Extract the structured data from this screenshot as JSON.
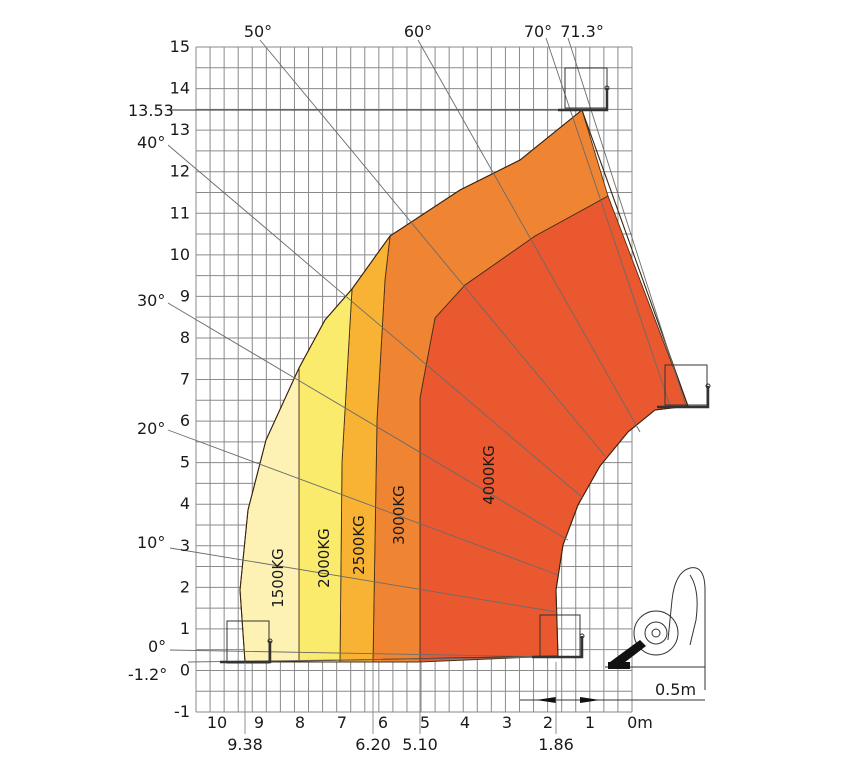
{
  "chart_data": {
    "type": "load-chart",
    "x_ticks": [
      "10",
      "9",
      "8",
      "7",
      "6",
      "5",
      "4",
      "3",
      "2",
      "1",
      "0m"
    ],
    "x_sub_labels": [
      "9.38",
      "6.20",
      "5.10",
      "1.86"
    ],
    "y_ticks": [
      "15",
      "14",
      "13",
      "12",
      "11",
      "10",
      "9",
      "8",
      "7",
      "6",
      "5",
      "4",
      "3",
      "2",
      "1",
      "0",
      "-1"
    ],
    "max_height_label": "13.53",
    "angles": [
      {
        "label": "0°",
        "deg": 0
      },
      {
        "label": "-1.2°",
        "deg": -1.2
      },
      {
        "label": "10°",
        "deg": 10
      },
      {
        "label": "20°",
        "deg": 20
      },
      {
        "label": "30°",
        "deg": 30
      },
      {
        "label": "40°",
        "deg": 40
      },
      {
        "label": "50°",
        "deg": 50
      },
      {
        "label": "60°",
        "deg": 60
      },
      {
        "label": "70°",
        "deg": 70
      },
      {
        "label": "71.3°",
        "deg": 71.3
      }
    ],
    "zones": [
      {
        "name": "1500KG",
        "color": "#fdf2b3"
      },
      {
        "name": "2000KG",
        "color": "#fbeb6c"
      },
      {
        "name": "2500KG",
        "color": "#f8b334"
      },
      {
        "name": "3000KG",
        "color": "#ef8533"
      },
      {
        "name": "4000KG",
        "color": "#e9582f"
      }
    ],
    "scale_label": "0.5m"
  }
}
